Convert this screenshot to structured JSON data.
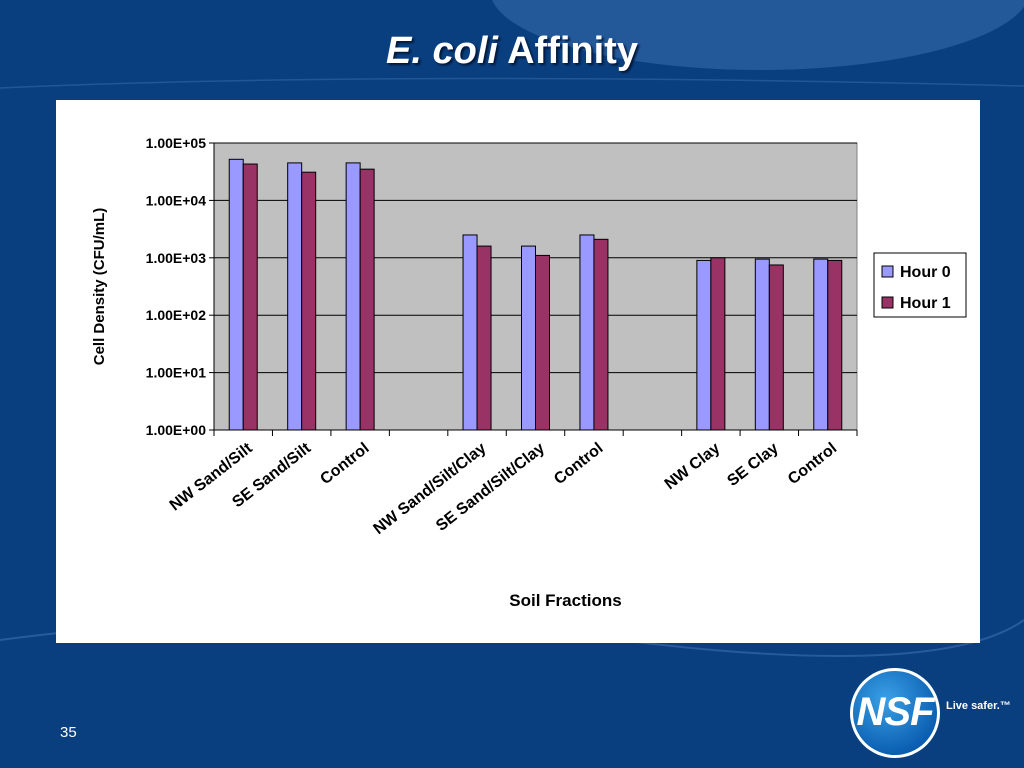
{
  "slide": {
    "title_italic": "E. coli",
    "title_rest": "Affinity",
    "slide_number": "35",
    "tagline": "Live safer.™",
    "logo_text": "NSF"
  },
  "chart_data": {
    "type": "bar",
    "categories": [
      "NW Sand/Silt",
      "SE Sand/Silt",
      "Control",
      "",
      "NW Sand/Silt/Clay",
      "SE Sand/Silt/Clay",
      "Control",
      "",
      "NW Clay",
      "SE Clay",
      "Control"
    ],
    "series": [
      {
        "name": "Hour 0",
        "color": "#9999ff",
        "values": [
          52000,
          45000,
          45000,
          null,
          2500,
          1600,
          2500,
          null,
          900,
          950,
          950
        ]
      },
      {
        "name": "Hour 1",
        "color": "#993366",
        "values": [
          43000,
          31000,
          35000,
          null,
          1600,
          1100,
          2100,
          null,
          1000,
          750,
          900
        ]
      }
    ],
    "yscale": "log",
    "ylim": [
      1,
      100000
    ],
    "yticks": [
      "1.00E+00",
      "1.00E+01",
      "1.00E+02",
      "1.00E+03",
      "1.00E+04",
      "1.00E+05"
    ],
    "xlabel": "Soil Fractions",
    "ylabel": "Cell Density (CFU/mL)",
    "grid": true,
    "legend": "right",
    "plot_background": "#c0c0c0"
  }
}
